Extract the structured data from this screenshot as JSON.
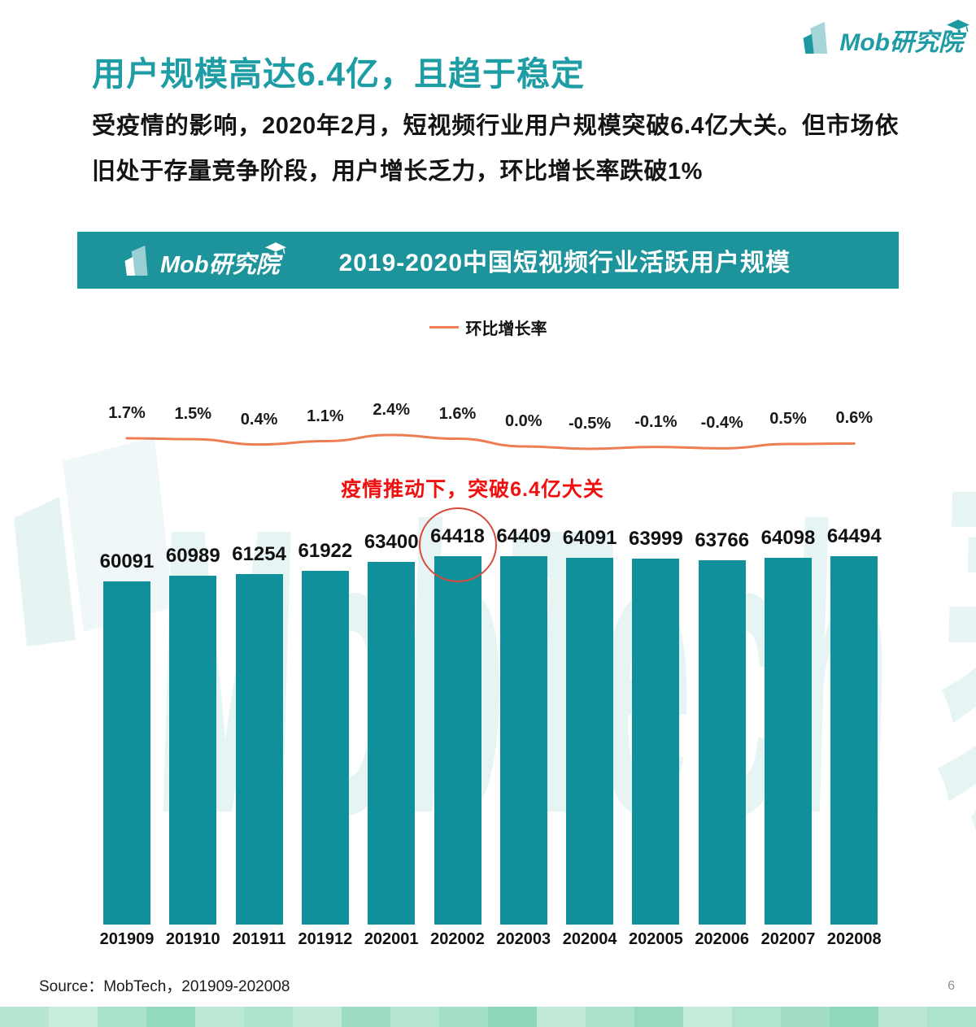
{
  "page": {
    "title": "用户规模高达6.4亿，且趋于稳定",
    "body": "受疫情的影响，2020年2月，短视频行业用户规模突破6.4亿大关。但市场依旧处于存量竞争阶段，用户增长乏力，环比增长率跌破1%",
    "source": "Source：MobTech，201909-202008",
    "page_number": "6"
  },
  "logo": {
    "brand": "Mob研究院",
    "watermark": "MobTech 袤博"
  },
  "chart": {
    "header_title": "2019-2020中国短视频行业活跃用户规模",
    "legend_label": "环比增长率",
    "annotation": "疫情推动下，突破6.4亿大关",
    "highlight_index": 5
  },
  "chart_data": {
    "type": "bar",
    "title": "2019-2020中国短视频行业活跃用户规模",
    "categories": [
      "201909",
      "201910",
      "201911",
      "201912",
      "202001",
      "202002",
      "202003",
      "202004",
      "202005",
      "202006",
      "202007",
      "202008"
    ],
    "series": [
      {
        "name": "活跃用户规模",
        "type": "bar",
        "values": [
          60091,
          60989,
          61254,
          61922,
          63400,
          64418,
          64409,
          64091,
          63999,
          63766,
          64098,
          64494
        ]
      },
      {
        "name": "环比增长率",
        "type": "line",
        "unit": "%",
        "values": [
          1.7,
          1.5,
          0.4,
          1.1,
          2.4,
          1.6,
          0.0,
          -0.5,
          -0.1,
          -0.4,
          0.5,
          0.6
        ]
      }
    ],
    "annotations": [
      "疫情推动下，突破6.4亿大关",
      "红圈标注202002的64418"
    ],
    "legend_position": "top",
    "grid": false,
    "value_labels": true
  },
  "colors": {
    "teal_title": "#1F9DA5",
    "teal_header_band": "#1D939C",
    "teal_bar": "#0F909A",
    "orange_line": "#ED7D52",
    "red_annotation": "#F01010",
    "red_ellipse": "#D84A3C",
    "watermark": "rgba(23,143,150,0.10)"
  },
  "footer_strip": {
    "colors": [
      "#b7e6d2",
      "#c6ecdc",
      "#a9e1cb",
      "#93d9bd",
      "#bce8d6",
      "#aee3cd",
      "#c2ead9",
      "#9fdcc4",
      "#b4e5d0",
      "#a5dfc8",
      "#8fd7ba",
      "#c0e9d8",
      "#ace2cc",
      "#98dabf",
      "#c5ebdb",
      "#b1e4cf",
      "#a2ddc6",
      "#90d8bb",
      "#bae7d4",
      "#ade2cd"
    ]
  }
}
